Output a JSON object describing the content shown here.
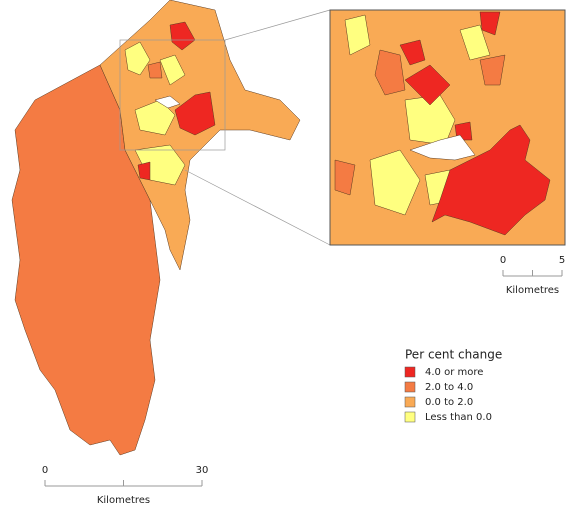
{
  "legend": {
    "title": "Per cent change",
    "items": [
      {
        "label": "4.0 or more",
        "color": "#ee2722"
      },
      {
        "label": "2.0 to 4.0",
        "color": "#f47b43"
      },
      {
        "label": "0.0 to 2.0",
        "color": "#f9aa55"
      },
      {
        "label": "Less than 0.0",
        "color": "#ffff80"
      }
    ]
  },
  "main_scale": {
    "ticks": [
      0,
      30
    ],
    "unit": "Kilometres"
  },
  "inset_scale": {
    "ticks": [
      0,
      5
    ],
    "unit": "Kilometres"
  }
}
